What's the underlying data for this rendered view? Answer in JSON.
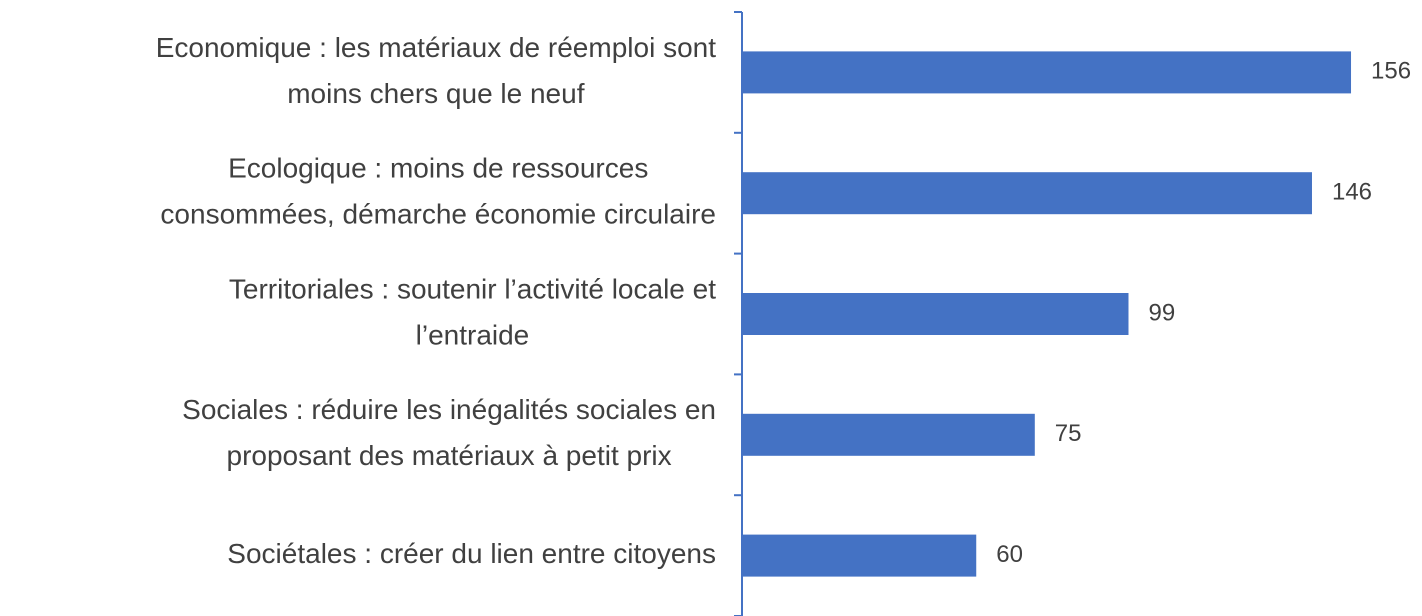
{
  "chart_data": {
    "type": "bar",
    "orientation": "horizontal",
    "categories": [
      [
        "Economique : les matériaux de réemploi sont",
        "moins chers que le neuf"
      ],
      [
        "Ecologique : moins de ressources",
        "consommées, démarche économie circulaire"
      ],
      [
        "Territoriales : soutenir l’activité locale et",
        "l’entraide"
      ],
      [
        "Sociales : réduire les inégalités sociales en",
        "proposant des matériaux à petit prix"
      ],
      [
        "Sociétales : créer du lien entre citoyens"
      ]
    ],
    "values": [
      156,
      146,
      99,
      75,
      60
    ],
    "color": "#4472c4",
    "xlim": [
      0,
      175
    ]
  }
}
